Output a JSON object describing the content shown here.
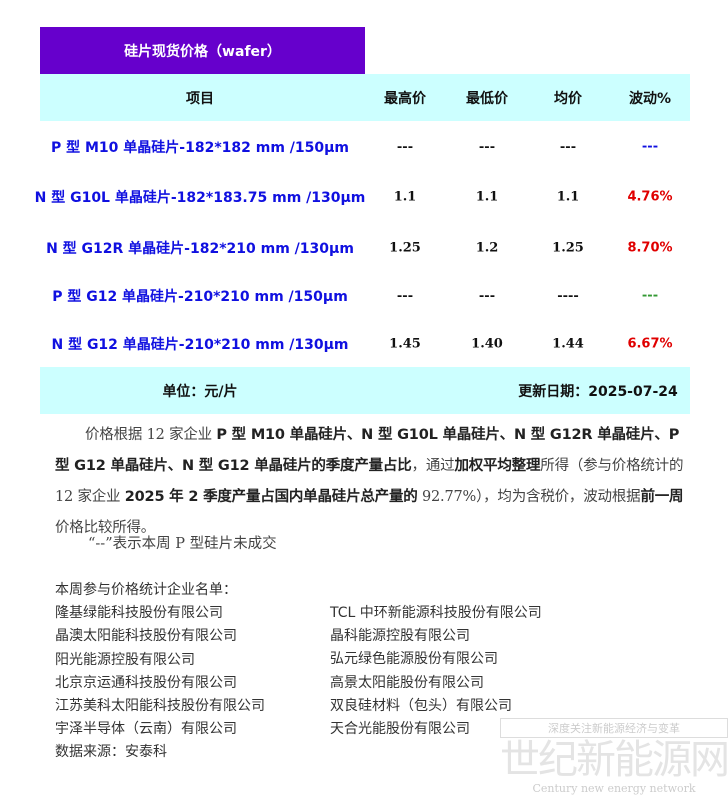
{
  "title": "硅片现货价格（wafer）",
  "header": {
    "item": "项目",
    "max": "最高价",
    "min": "最低价",
    "avg": "均价",
    "change": "波动%"
  },
  "rows": [
    {
      "item": "P 型 M10 单晶硅片-182*182 mm /150μm",
      "max": "---",
      "min": "---",
      "avg": "---",
      "change": "---",
      "change_color": "#1010e0"
    },
    {
      "item": "N 型 G10L 单晶硅片-182*183.75 mm /130μm",
      "max": "1.1",
      "min": "1.1",
      "avg": "1.1",
      "change": "4.76%",
      "change_color": "#e00000"
    },
    {
      "item": "N 型 G12R 单晶硅片-182*210 mm /130μm",
      "max": "1.25",
      "min": "1.2",
      "avg": "1.25",
      "change": "8.70%",
      "change_color": "#e00000"
    },
    {
      "item": "P 型 G12 单晶硅片-210*210 mm /150μm",
      "max": "---",
      "min": "---",
      "avg": "----",
      "change": "---",
      "change_color": "#339933"
    },
    {
      "item": "N 型 G12 单晶硅片-210*210 mm /130μm",
      "max": "1.45",
      "min": "1.40",
      "avg": "1.44",
      "change": "6.67%",
      "change_color": "#e00000"
    }
  ],
  "footer": {
    "unit": "单位：元/片",
    "updated": "更新日期：2025-07-24"
  },
  "paragraph": [
    {
      "text": "价格根据 12 家企业 ",
      "bold": false
    },
    {
      "text": "P 型 M10 单晶硅片、N 型 G10L 单晶硅片、N 型 G12R 单晶硅片、P 型 G12 单晶硅片、N 型 G12 单晶硅片的季度产量占比",
      "bold": true
    },
    {
      "text": "，通过",
      "bold": false
    },
    {
      "text": "加权平均整理",
      "bold": true
    },
    {
      "text": "所得（参与价格统计的 12 家企业 ",
      "bold": false
    },
    {
      "text": "2025 年 2 季度产量占国内单晶硅片总产量的",
      "bold": true
    },
    {
      "text": " 92.77%），均为含税价，波动根据",
      "bold": false
    },
    {
      "text": "前一周",
      "bold": true
    },
    {
      "text": "价格比较所得。",
      "bold": false
    }
  ],
  "note": "“--”表示本周 P 型硅片未成交",
  "companies_title": "本周参与价格统计企业名单：",
  "companies_left": [
    "隆基绿能科技股份有限公司",
    "晶澳太阳能科技股份有限公司",
    "阳光能源控股有限公司",
    "北京京运通科技股份有限公司",
    "江苏美科太阳能科技股份有限公司",
    "宇泽半导体（云南）有限公司"
  ],
  "companies_right": [
    "TCL 中环新能源科技股份有限公司",
    "晶科能源控股有限公司",
    "弘元绿色能源股份有限公司",
    "高景太阳能股份有限公司",
    "双良硅材料（包头）有限公司",
    "天合光能股份有限公司"
  ],
  "source": "数据来源：安泰科",
  "watermark": {
    "tagline": "深度关注新能源经济与变革",
    "name": "世纪新能源网",
    "english": "Century new energy network"
  }
}
